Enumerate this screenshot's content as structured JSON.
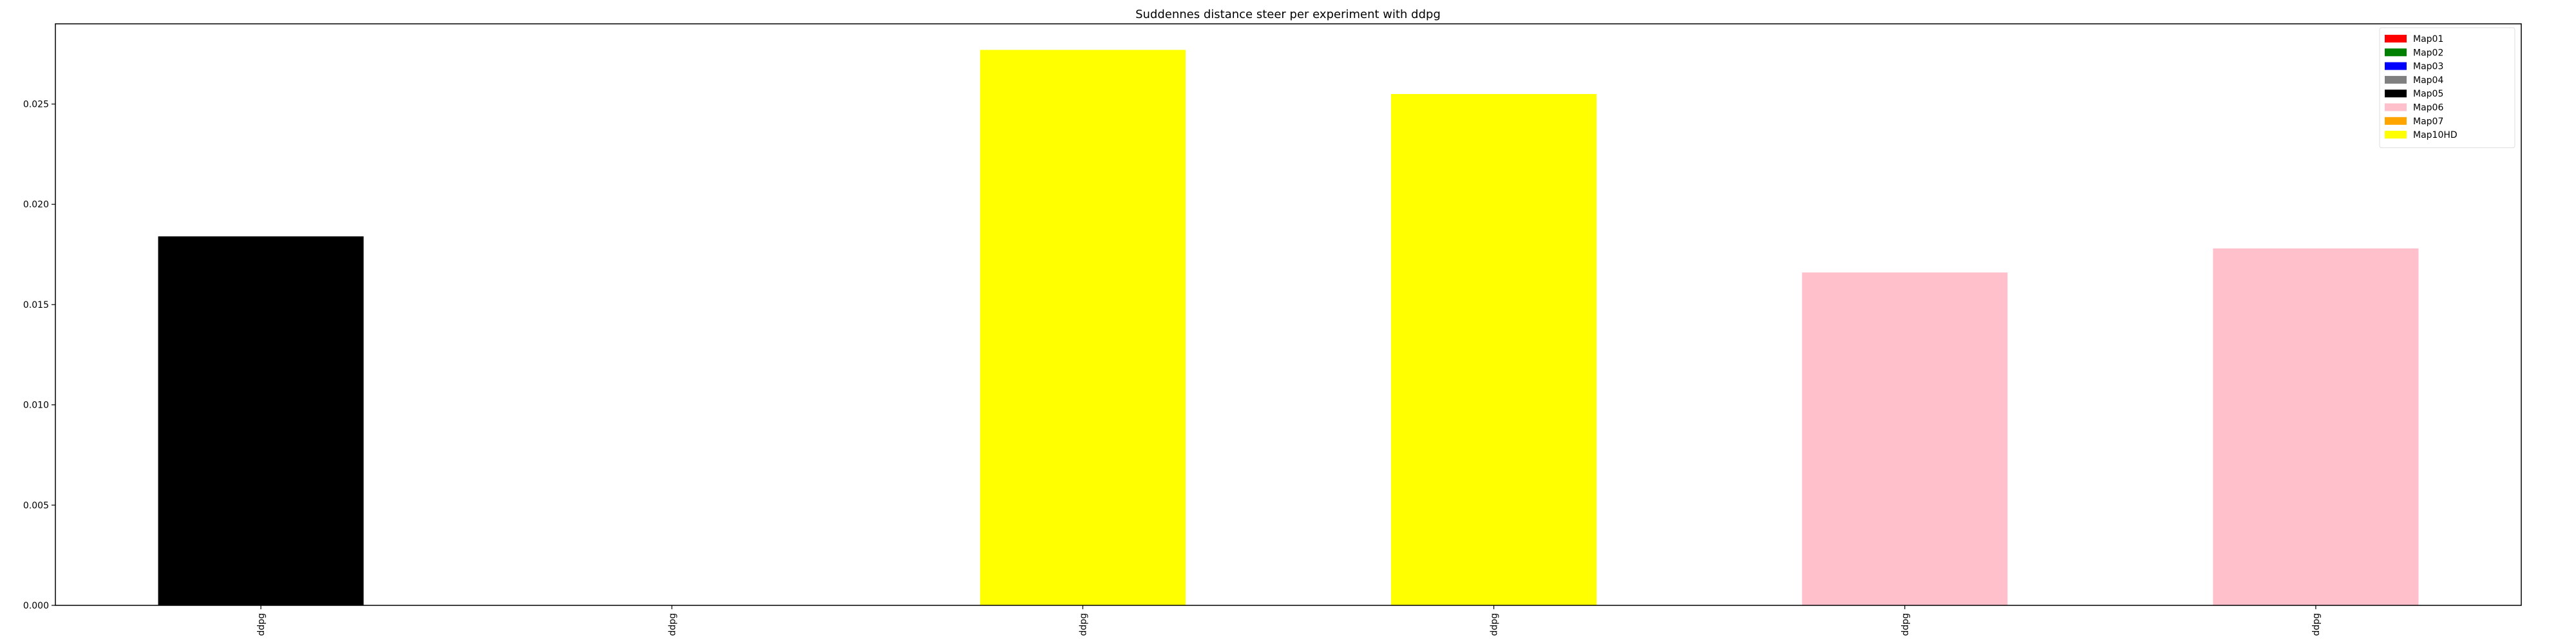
{
  "chart_data": {
    "type": "bar",
    "title": "Suddennes distance steer per experiment with ddpg",
    "xlabel": "",
    "ylabel": "",
    "categories": [
      "ddpg",
      "ddpg",
      "ddpg",
      "ddpg",
      "ddpg",
      "ddpg"
    ],
    "values": [
      0.0184,
      0,
      0.0277,
      0.0255,
      0.0166,
      0.0178
    ],
    "bar_colors": [
      "#000000",
      "#ffffff",
      "#ffff00",
      "#ffff00",
      "#ffc0cb",
      "#ffc0cb"
    ],
    "ylim": [
      0,
      0.029
    ],
    "yticks": [
      0.0,
      0.005,
      0.01,
      0.015,
      0.02,
      0.025
    ],
    "ytick_labels": [
      "0.000",
      "0.005",
      "0.010",
      "0.015",
      "0.020",
      "0.025"
    ],
    "grid": false,
    "legend_position": "top-right",
    "legend": [
      {
        "label": "Map01",
        "color": "#ff0000"
      },
      {
        "label": "Map02",
        "color": "#008000"
      },
      {
        "label": "Map03",
        "color": "#0000ff"
      },
      {
        "label": "Map04",
        "color": "#808080"
      },
      {
        "label": "Map05",
        "color": "#000000"
      },
      {
        "label": "Map06",
        "color": "#ffc0cb"
      },
      {
        "label": "Map07",
        "color": "#ffa500"
      },
      {
        "label": "Map10HD",
        "color": "#ffff00"
      }
    ]
  }
}
